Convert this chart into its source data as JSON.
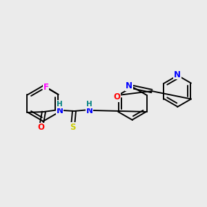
{
  "background_color": "#ebebeb",
  "atom_colors": {
    "F": "#ff00ff",
    "O": "#ff0000",
    "N": "#0000ff",
    "S": "#cccc00",
    "C": "#000000",
    "H": "#008080"
  },
  "figsize": [
    3.0,
    3.0
  ],
  "dpi": 100
}
